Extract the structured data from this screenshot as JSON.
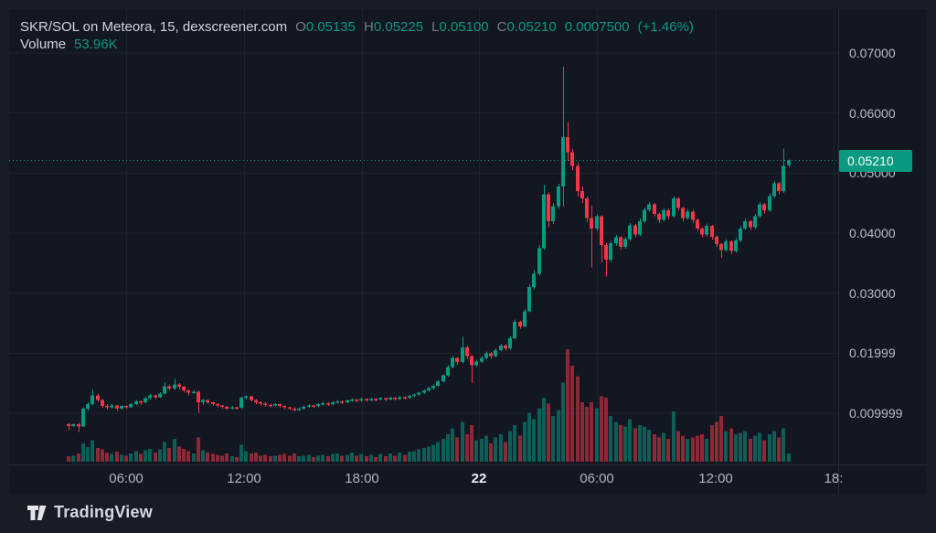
{
  "header": {
    "symbol_title": "SKR/SOL on Meteora, 15, dexscreener.com",
    "ohlc": [
      {
        "label": "O",
        "value": "0.05135"
      },
      {
        "label": "H",
        "value": "0.05225"
      },
      {
        "label": "L",
        "value": "0.05100"
      },
      {
        "label": "C",
        "value": "0.05210"
      }
    ],
    "change_abs": "0.0007500",
    "change_pct": "(+1.46%)",
    "volume_label": "Volume",
    "volume_value": "53.96K"
  },
  "price_axis": {
    "last_price_label": "0.05210",
    "ticks": [
      {
        "label": "0.07000",
        "price": 0.07
      },
      {
        "label": "0.06000",
        "price": 0.06
      },
      {
        "label": "0.05000",
        "price": 0.05
      },
      {
        "label": "0.04000",
        "price": 0.04
      },
      {
        "label": "0.03000",
        "price": 0.03
      },
      {
        "label": "0.01999",
        "price": 0.02
      },
      {
        "label": "0.009999",
        "price": 0.01
      }
    ]
  },
  "time_axis": {
    "ticks": [
      {
        "label": "06:00",
        "emphasis": false
      },
      {
        "label": "12:00",
        "emphasis": false
      },
      {
        "label": "18:00",
        "emphasis": false
      },
      {
        "label": "22",
        "emphasis": true
      },
      {
        "label": "06:00",
        "emphasis": false
      },
      {
        "label": "12:00",
        "emphasis": false
      },
      {
        "label": "18:",
        "emphasis": false
      }
    ]
  },
  "footer": {
    "brand": "TradingView"
  },
  "colors": {
    "up": "#089981",
    "down": "#f23645",
    "volume_up": "rgba(8,153,129,0.55)",
    "volume_down": "rgba(242,54,69,0.55)",
    "grid": "#1e222d",
    "chart_bg": "#131722",
    "outer_bg": "#181c27",
    "text_main": "#d1d4dc",
    "text_dim": "#787b86",
    "axis_text": "#b8bcc6",
    "last_price_line": "#089981"
  },
  "chart_data": {
    "type": "candlestick",
    "title": "SKR/SOL on Meteora, 15, dexscreener.com",
    "symbol": "SKR/SOL",
    "venue": "Meteora",
    "interval_minutes": 15,
    "source": "dexscreener.com",
    "price_scale": "linear",
    "ylim": [
      0.0065,
      0.0715
    ],
    "last_price": 0.0521,
    "legend_last_bar": {
      "open": 0.05135,
      "high": 0.05225,
      "low": 0.051,
      "close": 0.0521,
      "volume_k": 53.96,
      "change_abs": 0.00075,
      "change_pct": 1.46
    },
    "volume_unit": "K",
    "candles_format": [
      "open",
      "high",
      "low",
      "close",
      "volume_k"
    ],
    "candles": [
      [
        0.0082,
        0.0084,
        0.0072,
        0.0079,
        35
      ],
      [
        0.0079,
        0.0083,
        0.0077,
        0.0082,
        40
      ],
      [
        0.0082,
        0.0084,
        0.0069,
        0.0078,
        55
      ],
      [
        0.0078,
        0.011,
        0.0077,
        0.0108,
        120
      ],
      [
        0.0108,
        0.0118,
        0.0104,
        0.0115,
        95
      ],
      [
        0.0115,
        0.014,
        0.0113,
        0.013,
        140
      ],
      [
        0.013,
        0.0133,
        0.0119,
        0.0122,
        90
      ],
      [
        0.0122,
        0.0124,
        0.0109,
        0.0112,
        80
      ],
      [
        0.0112,
        0.0115,
        0.0106,
        0.011,
        60
      ],
      [
        0.011,
        0.0116,
        0.0108,
        0.0113,
        50
      ],
      [
        0.0113,
        0.0114,
        0.0104,
        0.0108,
        65
      ],
      [
        0.0108,
        0.0113,
        0.0106,
        0.0112,
        45
      ],
      [
        0.0112,
        0.0113,
        0.0107,
        0.011,
        40
      ],
      [
        0.011,
        0.0117,
        0.0109,
        0.0115,
        55
      ],
      [
        0.0115,
        0.0122,
        0.0113,
        0.012,
        70
      ],
      [
        0.012,
        0.0121,
        0.0114,
        0.0118,
        50
      ],
      [
        0.0118,
        0.0127,
        0.0116,
        0.0125,
        75
      ],
      [
        0.0125,
        0.0132,
        0.0123,
        0.013,
        85
      ],
      [
        0.013,
        0.0131,
        0.0124,
        0.0127,
        60
      ],
      [
        0.0127,
        0.0135,
        0.0125,
        0.0133,
        80
      ],
      [
        0.0133,
        0.0152,
        0.0131,
        0.0145,
        130
      ],
      [
        0.0145,
        0.0148,
        0.0138,
        0.0141,
        90
      ],
      [
        0.0141,
        0.0157,
        0.0139,
        0.0148,
        150
      ],
      [
        0.0148,
        0.015,
        0.014,
        0.0144,
        100
      ],
      [
        0.0144,
        0.0146,
        0.0134,
        0.0138,
        85
      ],
      [
        0.0138,
        0.014,
        0.013,
        0.0134,
        70
      ],
      [
        0.0134,
        0.0139,
        0.0132,
        0.0136,
        55
      ],
      [
        0.0136,
        0.0137,
        0.01,
        0.0118,
        160
      ],
      [
        0.0118,
        0.0124,
        0.0114,
        0.0122,
        75
      ],
      [
        0.0122,
        0.0123,
        0.0115,
        0.0118,
        60
      ],
      [
        0.0118,
        0.0119,
        0.0112,
        0.0115,
        50
      ],
      [
        0.0115,
        0.0117,
        0.011,
        0.0113,
        45
      ],
      [
        0.0113,
        0.0114,
        0.0108,
        0.0111,
        40
      ],
      [
        0.0111,
        0.0112,
        0.0105,
        0.0108,
        55
      ],
      [
        0.0108,
        0.0112,
        0.0106,
        0.011,
        35
      ],
      [
        0.011,
        0.0111,
        0.0106,
        0.0109,
        30
      ],
      [
        0.0109,
        0.0128,
        0.0107,
        0.0126,
        110
      ],
      [
        0.0126,
        0.013,
        0.0123,
        0.0128,
        70
      ],
      [
        0.0128,
        0.0129,
        0.012,
        0.0122,
        55
      ],
      [
        0.0122,
        0.0124,
        0.0115,
        0.0118,
        60
      ],
      [
        0.0118,
        0.012,
        0.0113,
        0.0116,
        40
      ],
      [
        0.0116,
        0.0118,
        0.0111,
        0.0114,
        45
      ],
      [
        0.0114,
        0.0116,
        0.011,
        0.0113,
        35
      ],
      [
        0.0113,
        0.0117,
        0.0111,
        0.0115,
        40
      ],
      [
        0.0115,
        0.0116,
        0.0109,
        0.0112,
        45
      ],
      [
        0.0112,
        0.0113,
        0.0107,
        0.011,
        50
      ],
      [
        0.011,
        0.0111,
        0.0105,
        0.0108,
        40
      ],
      [
        0.0108,
        0.011,
        0.0103,
        0.0106,
        55
      ],
      [
        0.0106,
        0.011,
        0.0104,
        0.0108,
        35
      ],
      [
        0.0108,
        0.0113,
        0.0106,
        0.0111,
        40
      ],
      [
        0.0111,
        0.0115,
        0.0109,
        0.0113,
        45
      ],
      [
        0.0113,
        0.0114,
        0.0109,
        0.0112,
        30
      ],
      [
        0.0112,
        0.0117,
        0.011,
        0.0115,
        40
      ],
      [
        0.0115,
        0.0119,
        0.0113,
        0.0117,
        45
      ],
      [
        0.0117,
        0.0118,
        0.0112,
        0.0115,
        35
      ],
      [
        0.0115,
        0.012,
        0.0113,
        0.0118,
        50
      ],
      [
        0.0118,
        0.0122,
        0.0116,
        0.012,
        55
      ],
      [
        0.012,
        0.0121,
        0.0115,
        0.0118,
        40
      ],
      [
        0.0118,
        0.0123,
        0.0116,
        0.0121,
        45
      ],
      [
        0.0121,
        0.0125,
        0.0119,
        0.0123,
        60
      ],
      [
        0.0123,
        0.0124,
        0.0118,
        0.0121,
        40
      ],
      [
        0.0121,
        0.0126,
        0.0119,
        0.0124,
        50
      ],
      [
        0.0124,
        0.0125,
        0.0119,
        0.0122,
        35
      ],
      [
        0.0122,
        0.0126,
        0.012,
        0.0124,
        45
      ],
      [
        0.0124,
        0.0125,
        0.012,
        0.0123,
        30
      ],
      [
        0.0123,
        0.0127,
        0.0121,
        0.0125,
        50
      ],
      [
        0.0125,
        0.0126,
        0.012,
        0.0123,
        35
      ],
      [
        0.0123,
        0.0128,
        0.0121,
        0.0126,
        55
      ],
      [
        0.0126,
        0.0127,
        0.0121,
        0.0124,
        40
      ],
      [
        0.0124,
        0.0129,
        0.0122,
        0.0127,
        60
      ],
      [
        0.0127,
        0.0128,
        0.0123,
        0.0126,
        45
      ],
      [
        0.0126,
        0.0131,
        0.0124,
        0.0129,
        65
      ],
      [
        0.0129,
        0.0133,
        0.0127,
        0.0131,
        70
      ],
      [
        0.0131,
        0.0136,
        0.0129,
        0.0134,
        80
      ],
      [
        0.0134,
        0.014,
        0.0132,
        0.0138,
        90
      ],
      [
        0.0138,
        0.0144,
        0.0136,
        0.0142,
        100
      ],
      [
        0.0142,
        0.0148,
        0.014,
        0.0146,
        110
      ],
      [
        0.0146,
        0.0155,
        0.0144,
        0.0153,
        130
      ],
      [
        0.0153,
        0.0165,
        0.0151,
        0.0163,
        150
      ],
      [
        0.0163,
        0.018,
        0.0161,
        0.0177,
        180
      ],
      [
        0.0177,
        0.0195,
        0.0175,
        0.0192,
        220
      ],
      [
        0.0192,
        0.0194,
        0.0181,
        0.0185,
        160
      ],
      [
        0.0185,
        0.0228,
        0.0183,
        0.021,
        260
      ],
      [
        0.021,
        0.0213,
        0.019,
        0.0195,
        180
      ],
      [
        0.0195,
        0.0197,
        0.015,
        0.018,
        240
      ],
      [
        0.018,
        0.0189,
        0.0177,
        0.0186,
        140
      ],
      [
        0.0186,
        0.0195,
        0.0184,
        0.0192,
        150
      ],
      [
        0.0192,
        0.0203,
        0.019,
        0.02,
        170
      ],
      [
        0.02,
        0.0202,
        0.0191,
        0.0195,
        120
      ],
      [
        0.0195,
        0.0208,
        0.0193,
        0.0205,
        160
      ],
      [
        0.0205,
        0.0216,
        0.0203,
        0.0213,
        180
      ],
      [
        0.0213,
        0.0215,
        0.0204,
        0.0208,
        130
      ],
      [
        0.0208,
        0.0228,
        0.0206,
        0.0225,
        200
      ],
      [
        0.0225,
        0.0256,
        0.0223,
        0.0252,
        240
      ],
      [
        0.0252,
        0.0254,
        0.0241,
        0.0245,
        170
      ],
      [
        0.0245,
        0.0274,
        0.0243,
        0.027,
        260
      ],
      [
        0.027,
        0.0315,
        0.0268,
        0.031,
        320
      ],
      [
        0.031,
        0.0338,
        0.0306,
        0.0332,
        280
      ],
      [
        0.0332,
        0.038,
        0.0329,
        0.0375,
        350
      ],
      [
        0.0375,
        0.0481,
        0.0372,
        0.0465,
        420
      ],
      [
        0.0465,
        0.0468,
        0.041,
        0.042,
        380
      ],
      [
        0.042,
        0.045,
        0.0415,
        0.0445,
        300
      ],
      [
        0.0445,
        0.0482,
        0.044,
        0.0478,
        340
      ],
      [
        0.0478,
        0.0677,
        0.0445,
        0.056,
        520
      ],
      [
        0.056,
        0.0585,
        0.052,
        0.0535,
        738
      ],
      [
        0.0535,
        0.054,
        0.0505,
        0.0512,
        630
      ],
      [
        0.0512,
        0.0518,
        0.0462,
        0.047,
        560
      ],
      [
        0.047,
        0.0478,
        0.045,
        0.0458,
        390
      ],
      [
        0.0458,
        0.0461,
        0.0418,
        0.0425,
        360
      ],
      [
        0.0425,
        0.0446,
        0.0343,
        0.0408,
        390
      ],
      [
        0.0408,
        0.0432,
        0.0404,
        0.0428,
        350
      ],
      [
        0.0428,
        0.043,
        0.0351,
        0.038,
        430
      ],
      [
        0.038,
        0.0384,
        0.0328,
        0.0356,
        420
      ],
      [
        0.0356,
        0.0387,
        0.0352,
        0.0383,
        300
      ],
      [
        0.0383,
        0.0397,
        0.0379,
        0.0393,
        260
      ],
      [
        0.0393,
        0.0395,
        0.0372,
        0.0377,
        240
      ],
      [
        0.0377,
        0.0394,
        0.0374,
        0.039,
        230
      ],
      [
        0.039,
        0.0417,
        0.0387,
        0.0413,
        280
      ],
      [
        0.0413,
        0.0415,
        0.0393,
        0.0398,
        220
      ],
      [
        0.0398,
        0.0424,
        0.0395,
        0.042,
        240
      ],
      [
        0.042,
        0.0443,
        0.0417,
        0.0439,
        230
      ],
      [
        0.0439,
        0.0452,
        0.0436,
        0.0448,
        210
      ],
      [
        0.0448,
        0.045,
        0.0428,
        0.0432,
        180
      ],
      [
        0.0432,
        0.0434,
        0.0417,
        0.0422,
        160
      ],
      [
        0.0422,
        0.0442,
        0.0419,
        0.0438,
        190
      ],
      [
        0.0438,
        0.044,
        0.0423,
        0.0428,
        150
      ],
      [
        0.0428,
        0.0462,
        0.0425,
        0.0458,
        330
      ],
      [
        0.0458,
        0.046,
        0.0437,
        0.0442,
        200
      ],
      [
        0.0442,
        0.0444,
        0.042,
        0.0425,
        170
      ],
      [
        0.0425,
        0.044,
        0.0422,
        0.0436,
        150
      ],
      [
        0.0436,
        0.0438,
        0.0417,
        0.0422,
        160
      ],
      [
        0.0422,
        0.0424,
        0.0403,
        0.0408,
        170
      ],
      [
        0.0408,
        0.041,
        0.0393,
        0.0398,
        180
      ],
      [
        0.0398,
        0.0416,
        0.0395,
        0.0412,
        150
      ],
      [
        0.0412,
        0.0414,
        0.0389,
        0.0394,
        240
      ],
      [
        0.0394,
        0.0396,
        0.0377,
        0.0382,
        260
      ],
      [
        0.0382,
        0.0384,
        0.0359,
        0.0372,
        300
      ],
      [
        0.0372,
        0.039,
        0.0369,
        0.0386,
        200
      ],
      [
        0.0386,
        0.0388,
        0.0365,
        0.037,
        220
      ],
      [
        0.037,
        0.0392,
        0.0367,
        0.0388,
        180
      ],
      [
        0.0388,
        0.0412,
        0.0385,
        0.0408,
        190
      ],
      [
        0.0408,
        0.0424,
        0.0405,
        0.042,
        200
      ],
      [
        0.042,
        0.0422,
        0.0405,
        0.041,
        150
      ],
      [
        0.041,
        0.0432,
        0.0407,
        0.0428,
        170
      ],
      [
        0.0428,
        0.0452,
        0.0425,
        0.0448,
        190
      ],
      [
        0.0448,
        0.045,
        0.0433,
        0.0438,
        140
      ],
      [
        0.0438,
        0.0466,
        0.0435,
        0.0462,
        180
      ],
      [
        0.0462,
        0.0487,
        0.0459,
        0.0483,
        200
      ],
      [
        0.0483,
        0.0485,
        0.0465,
        0.047,
        160
      ],
      [
        0.047,
        0.0541,
        0.0467,
        0.0512,
        220
      ],
      [
        0.05135,
        0.05225,
        0.051,
        0.0521,
        54
      ]
    ]
  }
}
